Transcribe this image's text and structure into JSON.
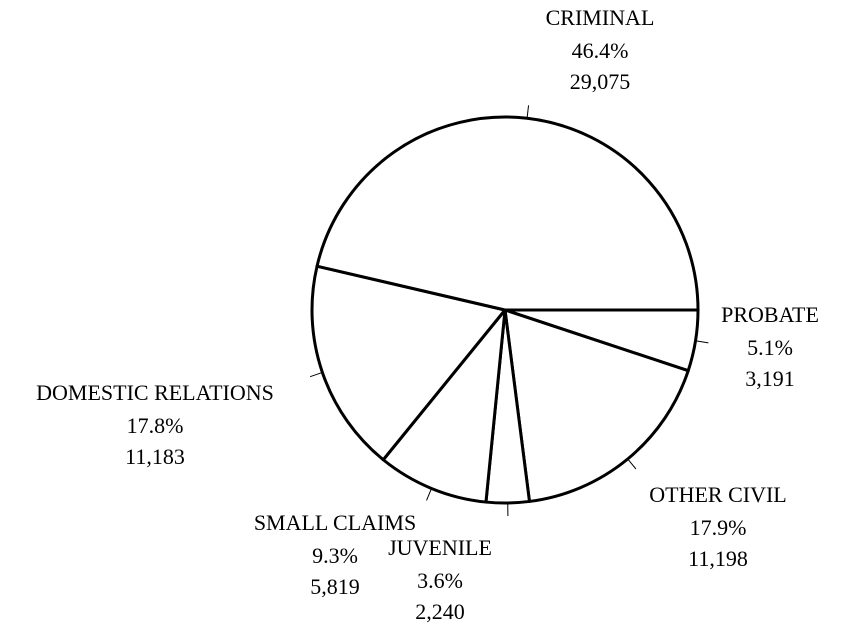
{
  "chart_data": {
    "type": "pie",
    "categories": [
      "PROBATE",
      "OTHER CIVIL",
      "JUVENILE",
      "SMALL CLAIMS",
      "DOMESTIC RELATIONS",
      "CRIMINAL"
    ],
    "values": [
      5.1,
      17.9,
      3.6,
      9.3,
      17.8,
      46.4
    ],
    "value_labels": [
      "5.1%",
      "17.9%",
      "3.6%",
      "9.3%",
      "17.8%",
      "46.4%"
    ],
    "counts": [
      {
        "value": 3191,
        "label": "3,191"
      },
      {
        "value": 11198,
        "label": "11,198"
      },
      {
        "value": 2240,
        "label": "2,240"
      },
      {
        "value": 5819,
        "label": "5,819"
      },
      {
        "value": 11183,
        "label": "11,183"
      },
      {
        "value": 29075,
        "label": "29,075"
      }
    ],
    "color": "#ffffff"
  }
}
